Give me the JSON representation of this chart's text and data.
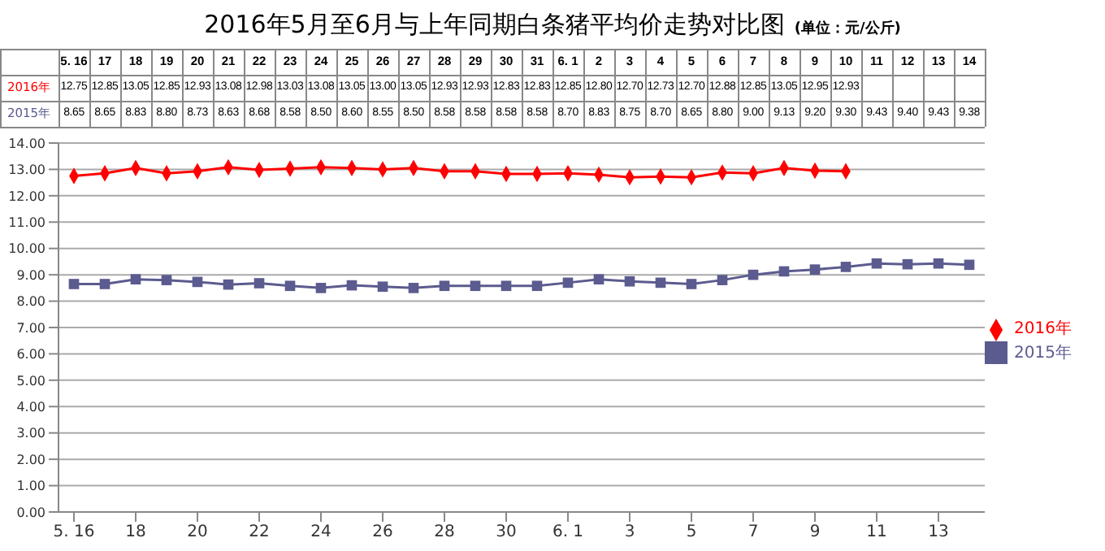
{
  "chart_data": {
    "type": "line",
    "title": "2016年5月至6月与上年同期白条猪平均价走势对比图",
    "subtitle": "(单位：元/公斤)",
    "categories": [
      "5. 16",
      "17",
      "18",
      "19",
      "20",
      "21",
      "22",
      "23",
      "24",
      "25",
      "26",
      "27",
      "28",
      "29",
      "30",
      "31",
      "6. 1",
      "2",
      "3",
      "4",
      "5",
      "6",
      "7",
      "8",
      "9",
      "10",
      "11",
      "12",
      "13",
      "14"
    ],
    "series": [
      {
        "name": "2016年",
        "color": "#ff0000",
        "marker": "diamond",
        "values": [
          12.75,
          12.85,
          13.05,
          12.85,
          12.93,
          13.08,
          12.98,
          13.03,
          13.08,
          13.05,
          13.0,
          13.05,
          12.93,
          12.93,
          12.83,
          12.83,
          12.85,
          12.8,
          12.7,
          12.73,
          12.7,
          12.88,
          12.85,
          13.05,
          12.95,
          12.93,
          null,
          null,
          null,
          null
        ],
        "value_labels": [
          "12.75",
          "12.85",
          "13.05",
          "12.85",
          "12.93",
          "13.08",
          "12.98",
          "13.03",
          "13.08",
          "13.05",
          "13.00",
          "13.05",
          "12.93",
          "12.93",
          "12.83",
          "12.83",
          "12.85",
          "12.80",
          "12.70",
          "12.73",
          "12.70",
          "12.88",
          "12.85",
          "13.05",
          "12.95",
          "12.93",
          null,
          null,
          null,
          null
        ]
      },
      {
        "name": "2015年",
        "color": "#5b5b8f",
        "marker": "square",
        "values": [
          8.65,
          8.65,
          8.83,
          8.8,
          8.73,
          8.63,
          8.68,
          8.58,
          8.5,
          8.6,
          8.55,
          8.5,
          8.58,
          8.58,
          8.58,
          8.58,
          8.7,
          8.83,
          8.75,
          8.7,
          8.65,
          8.8,
          9.0,
          9.13,
          9.2,
          9.3,
          9.43,
          9.4,
          9.43,
          9.38
        ],
        "value_labels": [
          "8.65",
          "8.65",
          "8.83",
          "8.80",
          "8.73",
          "8.63",
          "8.68",
          "8.58",
          "8.50",
          "8.60",
          "8.55",
          "8.50",
          "8.58",
          "8.58",
          "8.58",
          "8.58",
          "8.70",
          "8.83",
          "8.75",
          "8.70",
          "8.65",
          "8.80",
          "9.00",
          "9.13",
          "9.20",
          "9.30",
          "9.43",
          "9.40",
          "9.43",
          "9.38"
        ]
      }
    ],
    "ylim": [
      0,
      14
    ],
    "yticks": [
      {
        "value": 0,
        "label": "0.00"
      },
      {
        "value": 1,
        "label": "1.00"
      },
      {
        "value": 2,
        "label": "2.00"
      },
      {
        "value": 3,
        "label": "3.00"
      },
      {
        "value": 4,
        "label": "4.00"
      },
      {
        "value": 5,
        "label": "5.00"
      },
      {
        "value": 6,
        "label": "6.00"
      },
      {
        "value": 7,
        "label": "7.00"
      },
      {
        "value": 8,
        "label": "8.00"
      },
      {
        "value": 9,
        "label": "9.00"
      },
      {
        "value": 10,
        "label": "10.00"
      },
      {
        "value": 11,
        "label": "11.00"
      },
      {
        "value": 12,
        "label": "12.00"
      },
      {
        "value": 13,
        "label": "13.00"
      },
      {
        "value": 14,
        "label": "14.00"
      }
    ],
    "grid": "y",
    "legend": "right",
    "line_style": "solid"
  }
}
